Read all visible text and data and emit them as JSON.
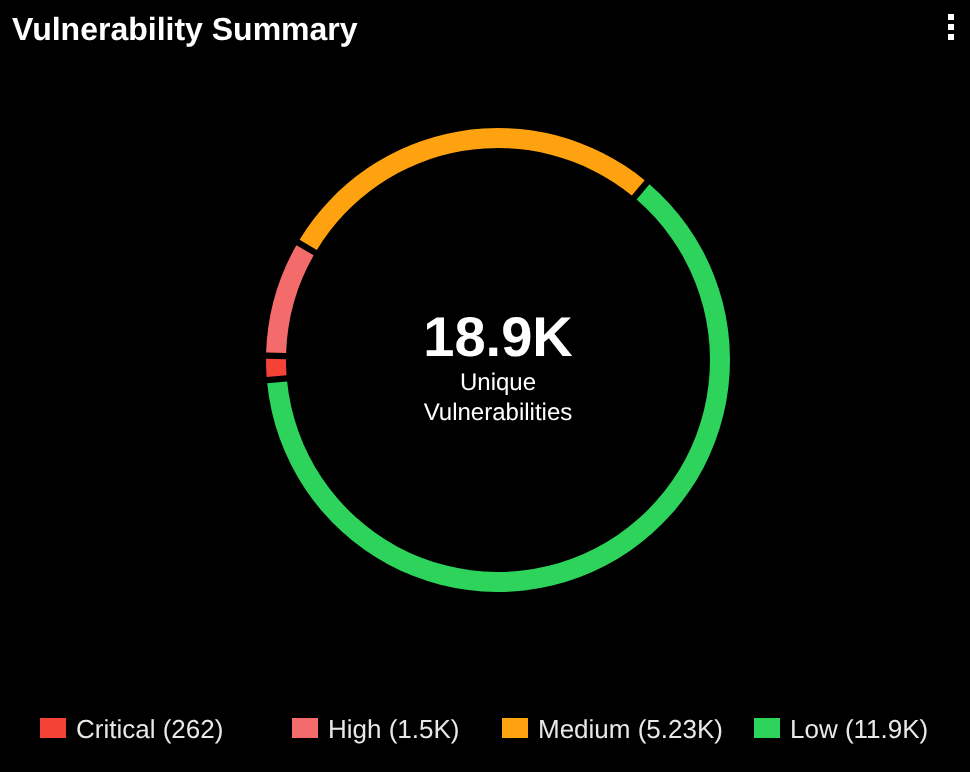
{
  "chart_data": {
    "type": "donut",
    "title": "Vulnerability Summary",
    "categories": [
      "Critical (262)",
      "High (1.5K)",
      "Medium (5.23K)",
      "Low (11.9K)"
    ],
    "values": [
      262,
      1500,
      5230,
      11900
    ],
    "colors": [
      "#f44336",
      "#f46b6b",
      "#ffa20f",
      "#2dd35a"
    ],
    "annotations": [
      "18.9K",
      "Unique Vulnerabilities"
    ],
    "legend": "bottom"
  }
}
